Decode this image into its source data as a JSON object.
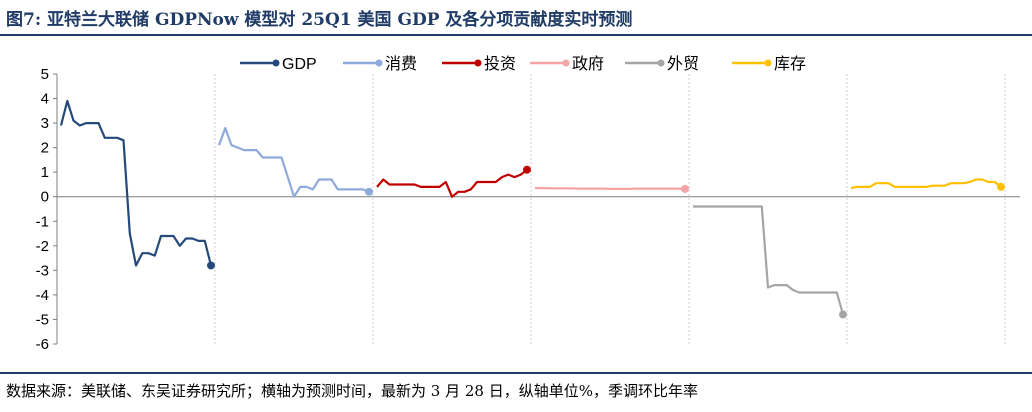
{
  "header": {
    "title": "图7:  亚特兰大联储 GDPNow 模型对 25Q1 美国 GDP 及各分项贡献度实时预测"
  },
  "footer": {
    "source": "数据来源：美联储、东吴证券研究所；横轴为预测时间，最新为 3 月 28 日，纵轴单位%，季调环比年率"
  },
  "chart_data": {
    "type": "line",
    "ylim": [
      -6,
      5
    ],
    "yticks": [
      "5",
      "4",
      "3",
      "2",
      "1",
      "0",
      "-1",
      "-2",
      "-3",
      "-4",
      "-5",
      "-6"
    ],
    "grid": false,
    "legend_position": "top",
    "series": [
      {
        "name": "GDP",
        "color": "#24497a",
        "values": [
          2.9,
          3.9,
          3.1,
          2.9,
          3.0,
          3.0,
          3.0,
          2.4,
          2.4,
          2.4,
          2.3,
          -1.5,
          -2.8,
          -2.3,
          -2.3,
          -2.4,
          -1.6,
          -1.6,
          -1.6,
          -2.0,
          -1.7,
          -1.7,
          -1.8,
          -1.8,
          -2.8
        ]
      },
      {
        "name": "消费",
        "color": "#8eaadb",
        "values": [
          2.1,
          2.8,
          2.1,
          2.0,
          1.9,
          1.9,
          1.9,
          1.6,
          1.6,
          1.6,
          1.6,
          0.8,
          0.0,
          0.4,
          0.4,
          0.3,
          0.7,
          0.7,
          0.7,
          0.3,
          0.3,
          0.3,
          0.3,
          0.3,
          0.2
        ]
      },
      {
        "name": "投资",
        "color": "#c00000",
        "values": [
          0.4,
          0.7,
          0.5,
          0.5,
          0.5,
          0.5,
          0.5,
          0.4,
          0.4,
          0.4,
          0.4,
          0.6,
          0.0,
          0.2,
          0.2,
          0.3,
          0.6,
          0.6,
          0.6,
          0.6,
          0.8,
          0.9,
          0.8,
          0.9,
          1.1
        ]
      },
      {
        "name": "政府",
        "color": "#f4a4a4",
        "values": [
          0.35,
          0.35,
          0.35,
          0.34,
          0.34,
          0.34,
          0.34,
          0.33,
          0.33,
          0.33,
          0.33,
          0.33,
          0.32,
          0.32,
          0.32,
          0.32,
          0.33,
          0.33,
          0.33,
          0.33,
          0.33,
          0.33,
          0.33,
          0.33,
          0.32
        ]
      },
      {
        "name": "外贸",
        "color": "#a5a5a5",
        "values": [
          -0.4,
          -0.4,
          -0.4,
          -0.4,
          -0.4,
          -0.4,
          -0.4,
          -0.4,
          -0.4,
          -0.4,
          -0.4,
          -0.4,
          -3.7,
          -3.6,
          -3.6,
          -3.6,
          -3.8,
          -3.9,
          -3.9,
          -3.9,
          -3.9,
          -3.9,
          -3.9,
          -3.9,
          -4.8
        ]
      },
      {
        "name": "库存",
        "color": "#ffc000",
        "values": [
          0.35,
          0.4,
          0.4,
          0.4,
          0.55,
          0.55,
          0.55,
          0.4,
          0.4,
          0.4,
          0.4,
          0.4,
          0.4,
          0.45,
          0.45,
          0.45,
          0.55,
          0.55,
          0.55,
          0.6,
          0.7,
          0.7,
          0.6,
          0.6,
          0.4
        ]
      }
    ]
  }
}
